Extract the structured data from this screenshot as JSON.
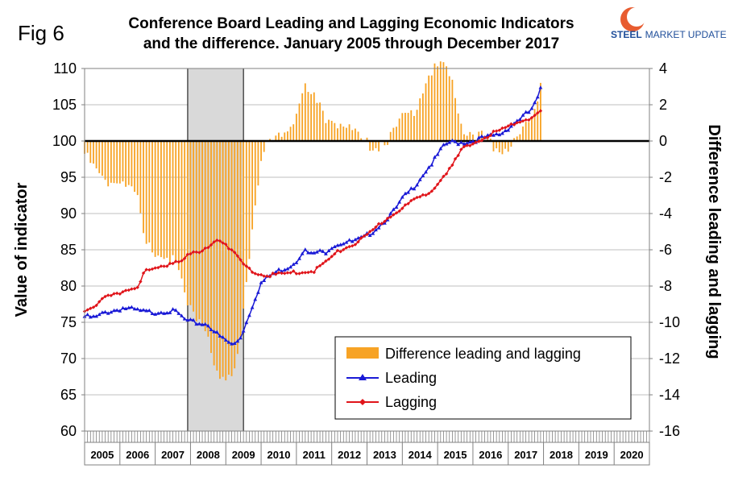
{
  "figure_label": "Fig 6",
  "logo": {
    "word1": "STEEL",
    "word2": "MARKET UPDATE"
  },
  "chart_data": {
    "type": "bar+line",
    "title": [
      "Conference Board Leading and Lagging Economic Indicators",
      "and the difference. January 2005 through December 2017"
    ],
    "ylabel_left": "Value of indicator",
    "ylabel_right": "Difference leading and lagging",
    "ylim_left": [
      60,
      110
    ],
    "ylim_right": [
      -16,
      4
    ],
    "yticks_left": [
      "110",
      "105",
      "100",
      "95",
      "90",
      "85",
      "80",
      "75",
      "70",
      "65",
      "60"
    ],
    "yticks_right": [
      "4",
      "2",
      "0",
      "-2",
      "-4",
      "-6",
      "-8",
      "-10",
      "-12",
      "-14",
      "-16"
    ],
    "years": [
      "2005",
      "2006",
      "2007",
      "2008",
      "2009",
      "2010",
      "2011",
      "2012",
      "2013",
      "2014",
      "2015",
      "2016",
      "2017",
      "2018",
      "2019",
      "2020"
    ],
    "recession": {
      "start_year": 2007.92,
      "end_year": 2009.5
    },
    "legend": [
      "Difference leading and lagging",
      "Leading",
      "Lagging"
    ],
    "colors": {
      "bars": "#f7a325",
      "leading": "#1a1ad6",
      "lagging": "#e0141a",
      "recession": "#d9d9d9",
      "zero_line": "#000000"
    },
    "anchors_leading": [
      [
        2005.0,
        75.8
      ],
      [
        2005.3,
        75.6
      ],
      [
        2005.6,
        76.4
      ],
      [
        2005.9,
        76.7
      ],
      [
        2006.1,
        77.0
      ],
      [
        2006.4,
        76.7
      ],
      [
        2006.7,
        76.4
      ],
      [
        2007.0,
        76.4
      ],
      [
        2007.3,
        76.6
      ],
      [
        2007.6,
        76.4
      ],
      [
        2007.9,
        75.1
      ],
      [
        2008.2,
        74.9
      ],
      [
        2008.5,
        74.7
      ],
      [
        2008.8,
        73.1
      ],
      [
        2009.0,
        72.5
      ],
      [
        2009.2,
        71.8
      ],
      [
        2009.4,
        72.8
      ],
      [
        2009.6,
        75.2
      ],
      [
        2009.8,
        78.0
      ],
      [
        2010.0,
        80.4
      ],
      [
        2010.3,
        81.6
      ],
      [
        2010.5,
        82.1
      ],
      [
        2010.8,
        82.7
      ],
      [
        2011.0,
        83.5
      ],
      [
        2011.2,
        85.0
      ],
      [
        2011.4,
        84.3
      ],
      [
        2011.6,
        84.7
      ],
      [
        2011.8,
        84.6
      ],
      [
        2012.0,
        85.5
      ],
      [
        2012.3,
        86.0
      ],
      [
        2012.6,
        86.1
      ],
      [
        2012.9,
        86.6
      ],
      [
        2013.2,
        87.7
      ],
      [
        2013.5,
        89.0
      ],
      [
        2013.8,
        90.5
      ],
      [
        2014.0,
        92.0
      ],
      [
        2014.3,
        93.5
      ],
      [
        2014.6,
        95.5
      ],
      [
        2014.9,
        97.3
      ],
      [
        2015.1,
        98.8
      ],
      [
        2015.3,
        99.8
      ],
      [
        2015.6,
        99.8
      ],
      [
        2015.9,
        99.9
      ],
      [
        2016.2,
        100.3
      ],
      [
        2016.5,
        100.6
      ],
      [
        2016.8,
        101.0
      ],
      [
        2017.0,
        101.8
      ],
      [
        2017.3,
        103.0
      ],
      [
        2017.6,
        104.0
      ],
      [
        2017.8,
        105.4
      ],
      [
        2017.92,
        107.1
      ]
    ],
    "anchors_lagging": [
      [
        2005.0,
        76.6
      ],
      [
        2005.3,
        77.4
      ],
      [
        2005.6,
        78.4
      ],
      [
        2005.9,
        78.8
      ],
      [
        2006.2,
        79.5
      ],
      [
        2006.5,
        80.0
      ],
      [
        2006.7,
        82.0
      ],
      [
        2007.0,
        82.3
      ],
      [
        2007.4,
        83.1
      ],
      [
        2007.8,
        83.8
      ],
      [
        2008.1,
        84.6
      ],
      [
        2008.3,
        84.6
      ],
      [
        2008.6,
        86.0
      ],
      [
        2008.8,
        86.5
      ],
      [
        2009.0,
        85.8
      ],
      [
        2009.3,
        84.1
      ],
      [
        2009.6,
        82.5
      ],
      [
        2009.9,
        81.6
      ],
      [
        2010.2,
        81.5
      ],
      [
        2010.5,
        81.6
      ],
      [
        2010.8,
        81.8
      ],
      [
        2011.1,
        81.9
      ],
      [
        2011.5,
        82.1
      ],
      [
        2011.8,
        83.2
      ],
      [
        2012.2,
        84.8
      ],
      [
        2012.6,
        85.7
      ],
      [
        2013.0,
        86.9
      ],
      [
        2013.3,
        88.3
      ],
      [
        2013.7,
        89.8
      ],
      [
        2014.0,
        90.8
      ],
      [
        2014.4,
        92.0
      ],
      [
        2014.8,
        93.0
      ],
      [
        2015.1,
        94.9
      ],
      [
        2015.4,
        96.5
      ],
      [
        2015.6,
        98.1
      ],
      [
        2015.7,
        98.9
      ],
      [
        2016.0,
        99.6
      ],
      [
        2016.3,
        100.4
      ],
      [
        2016.6,
        101.2
      ],
      [
        2016.9,
        101.7
      ],
      [
        2017.2,
        102.5
      ],
      [
        2017.5,
        103.0
      ],
      [
        2017.8,
        103.5
      ],
      [
        2017.92,
        104.0
      ]
    ]
  }
}
